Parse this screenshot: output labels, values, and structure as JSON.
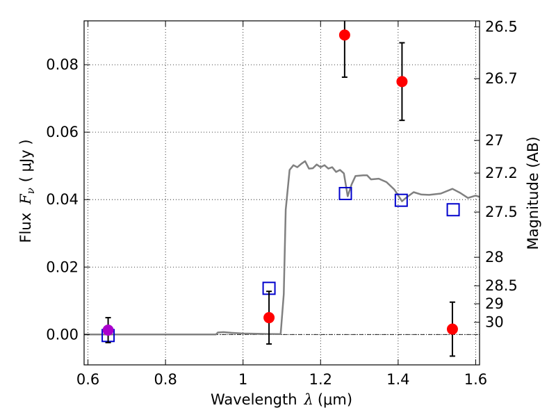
{
  "chart_data": {
    "type": "scatter",
    "xlabel": {
      "prefix": "Wavelength",
      "symbol": "λ",
      "unit": "(μm)"
    },
    "ylabel": {
      "prefix": "Flux",
      "symbol": "F",
      "subscript": "ν",
      "unit": "( μJy )"
    },
    "y2label": "Magnitude (AB)",
    "xlim": [
      0.59,
      1.61
    ],
    "ylim": [
      -0.009,
      0.093
    ],
    "grid": true,
    "zero_line": true,
    "x_ticks": [
      {
        "value": 0.6,
        "label": "0.6"
      },
      {
        "value": 0.8,
        "label": "0.8"
      },
      {
        "value": 1.0,
        "label": "1"
      },
      {
        "value": 1.2,
        "label": "1.2"
      },
      {
        "value": 1.4,
        "label": "1.4"
      },
      {
        "value": 1.6,
        "label": "1.6"
      }
    ],
    "y_ticks": [
      {
        "value": 0.0,
        "label": "0.00"
      },
      {
        "value": 0.02,
        "label": "0.02"
      },
      {
        "value": 0.04,
        "label": "0.04"
      },
      {
        "value": 0.06,
        "label": "0.06"
      },
      {
        "value": 0.08,
        "label": "0.08"
      }
    ],
    "y2_ticks": [
      {
        "value": 26.5,
        "label": "26.5"
      },
      {
        "value": 26.7,
        "label": "26.7"
      },
      {
        "value": 27.0,
        "label": "27"
      },
      {
        "value": 27.2,
        "label": "27.2"
      },
      {
        "value": 27.5,
        "label": "27.5"
      },
      {
        "value": 28.0,
        "label": "28"
      },
      {
        "value": 28.5,
        "label": "28.5"
      },
      {
        "value": 29.0,
        "label": "29"
      },
      {
        "value": 30.0,
        "label": "30"
      }
    ],
    "series": [
      {
        "kind": "line",
        "color": "#808080",
        "points": [
          [
            0.59,
            0.0
          ],
          [
            0.93,
            0.0
          ],
          [
            0.935,
            0.0006
          ],
          [
            0.95,
            0.0007
          ],
          [
            0.97,
            0.0005
          ],
          [
            1.0,
            0.0003
          ],
          [
            1.05,
            0.0002
          ],
          [
            1.097,
            0.0001
          ],
          [
            1.105,
            0.012
          ],
          [
            1.11,
            0.037
          ],
          [
            1.12,
            0.0488
          ],
          [
            1.13,
            0.0502
          ],
          [
            1.14,
            0.0496
          ],
          [
            1.15,
            0.0506
          ],
          [
            1.16,
            0.0514
          ],
          [
            1.17,
            0.0492
          ],
          [
            1.18,
            0.0493
          ],
          [
            1.19,
            0.0504
          ],
          [
            1.2,
            0.0496
          ],
          [
            1.21,
            0.0502
          ],
          [
            1.22,
            0.0492
          ],
          [
            1.23,
            0.0496
          ],
          [
            1.24,
            0.0482
          ],
          [
            1.25,
            0.0488
          ],
          [
            1.26,
            0.0478
          ],
          [
            1.27,
            0.041
          ],
          [
            1.28,
            0.0445
          ],
          [
            1.29,
            0.047
          ],
          [
            1.31,
            0.0472
          ],
          [
            1.32,
            0.0472
          ],
          [
            1.33,
            0.046
          ],
          [
            1.35,
            0.0462
          ],
          [
            1.37,
            0.0452
          ],
          [
            1.39,
            0.043
          ],
          [
            1.41,
            0.0395
          ],
          [
            1.42,
            0.0405
          ],
          [
            1.44,
            0.0422
          ],
          [
            1.46,
            0.0415
          ],
          [
            1.48,
            0.0414
          ],
          [
            1.51,
            0.0418
          ],
          [
            1.54,
            0.0432
          ],
          [
            1.56,
            0.042
          ],
          [
            1.58,
            0.0405
          ],
          [
            1.6,
            0.0412
          ],
          [
            1.61,
            0.0408
          ]
        ]
      },
      {
        "kind": "open-square",
        "color": "#0000cc",
        "points": [
          [
            0.652,
            -0.0003
          ],
          [
            1.067,
            0.0137
          ],
          [
            1.264,
            0.0418
          ],
          [
            1.408,
            0.0398
          ],
          [
            1.542,
            0.037
          ]
        ]
      },
      {
        "kind": "point-errorbar",
        "color": "#ff0000",
        "points": [
          {
            "x": 1.067,
            "y": 0.005,
            "err": 0.0078
          },
          {
            "x": 1.262,
            "y": 0.0888,
            "err": 0.0125
          },
          {
            "x": 1.41,
            "y": 0.075,
            "err": 0.0115
          },
          {
            "x": 1.54,
            "y": 0.0016,
            "err": 0.008
          }
        ]
      },
      {
        "kind": "point-errorbar",
        "color": "#aa00cc",
        "points": [
          {
            "x": 0.652,
            "y": 0.0013,
            "err": 0.0037
          }
        ]
      }
    ]
  }
}
